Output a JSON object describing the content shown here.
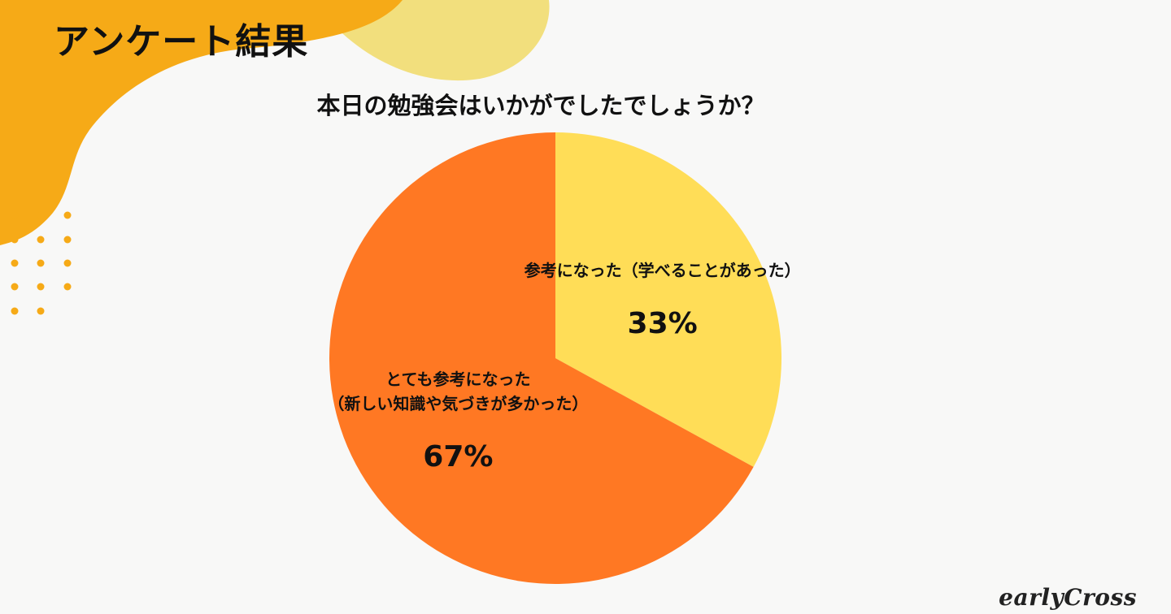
{
  "page": {
    "title": "アンケート結果",
    "brand": "earlyCross"
  },
  "colors": {
    "background": "#f8f8f7",
    "blob_orange": "#f6aa17",
    "blob_yellow": "#f2df7d",
    "dots": "#f6aa17",
    "slice_helpful": "#ffdd57",
    "slice_very_helpful": "#ff7823",
    "text": "#111111"
  },
  "chart_data": {
    "type": "pie",
    "title": "本日の勉強会はいかがでしたでしょうか？",
    "slices": [
      {
        "label": "参考になった（学べることがあった）",
        "value": 33,
        "value_label": "33%",
        "color": "#ffdd57"
      },
      {
        "label": "とても参考になった\n（新しい知識や気づきが多かった）",
        "value": 67,
        "value_label": "67%",
        "color": "#ff7823"
      }
    ],
    "start": "12 o'clock",
    "direction": "clockwise"
  }
}
